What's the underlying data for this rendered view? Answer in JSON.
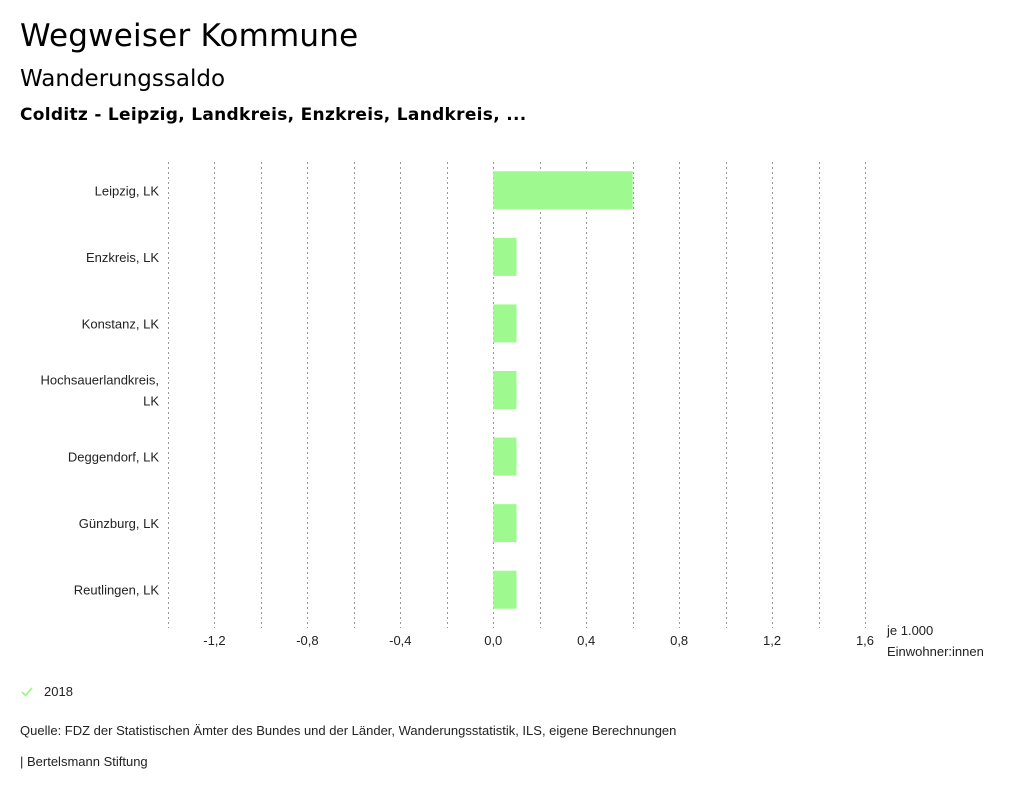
{
  "header": {
    "title": "Wegweiser Kommune",
    "subtitle": "Wanderungssaldo",
    "place": "Colditz - Leipzig, Landkreis, Enzkreis, Landkreis, ..."
  },
  "chart_data": {
    "type": "bar",
    "orientation": "horizontal",
    "categories": [
      [
        "Leipzig, LK"
      ],
      [
        "Enzkreis, LK"
      ],
      [
        "Konstanz, LK"
      ],
      [
        "Hochsauerlandkreis,",
        "LK"
      ],
      [
        "Deggendorf, LK"
      ],
      [
        "Günzburg, LK"
      ],
      [
        "Reutlingen, LK"
      ]
    ],
    "series": [
      {
        "name": "2018",
        "values": [
          0.6,
          0.1,
          0.1,
          0.1,
          0.1,
          0.1,
          0.1
        ]
      }
    ],
    "xlim": [
      -1.4,
      1.6
    ],
    "xticks": [
      -1.2,
      -0.8,
      -0.4,
      0.0,
      0.4,
      0.8,
      1.2,
      1.6
    ],
    "xtick_labels": [
      "-1,2",
      "-0,8",
      "-0,4",
      "0,0",
      "0,4",
      "0,8",
      "1,2",
      "1,6"
    ],
    "xlabel_lines": [
      "je 1.000",
      "Einwohner:innen"
    ],
    "grid": true,
    "bar_color": "#9ef98f"
  },
  "legend": {
    "label": "2018",
    "color": "#9ef98f"
  },
  "footer": {
    "source": "Quelle: FDZ der Statistischen Ämter des Bundes und der Länder, Wanderungsstatistik, ILS, eigene Berechnungen",
    "credit": "| Bertelsmann Stiftung"
  }
}
